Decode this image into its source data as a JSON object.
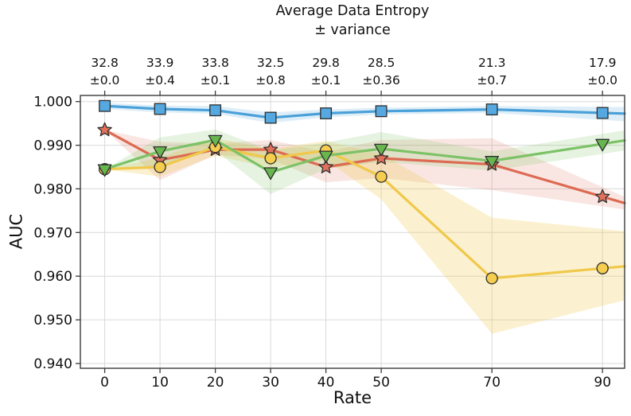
{
  "figure": {
    "title_line1": "Average Data Entropy",
    "title_line2": "± variance",
    "xlabel": "Rate",
    "ylabel": "AUC"
  },
  "chart_data": {
    "type": "line",
    "title": "Average Data Entropy ± variance",
    "xlabel": "Rate",
    "ylabel": "AUC",
    "grid": true,
    "grid_color": "#d9d9d9",
    "spine_color": "#3a3a3a",
    "tick_color": "#3a3a3a",
    "text_color": "#111111",
    "x": [
      0,
      10,
      20,
      30,
      40,
      50,
      70,
      90
    ],
    "xticks": [
      0,
      10,
      20,
      30,
      40,
      50,
      70,
      90
    ],
    "yticks": [
      1.0,
      0.99,
      0.98,
      0.97,
      0.96,
      0.95,
      0.94
    ],
    "xlim": [
      -4.4,
      94.0
    ],
    "ylim": [
      0.9389,
      1.0014
    ],
    "top_axis": {
      "entropies": [
        "32.8",
        "33.9",
        "33.8",
        "32.5",
        "29.8",
        "28.5",
        "21.3",
        "17.9"
      ],
      "variances": [
        "±0.0",
        "±0.4",
        "±0.1",
        "±0.8",
        "±0.1",
        "±0.36",
        "±0.7",
        "±0.0"
      ]
    },
    "series": [
      {
        "name": "red-stars",
        "marker": "star",
        "color": "#dd6a52",
        "marker_fill": "#e1705a",
        "band_alpha": 0.17,
        "values": [
          0.9935,
          0.9866,
          0.989,
          0.989,
          0.985,
          0.987,
          0.9856,
          0.9782
        ],
        "band_lower": [
          0.9935,
          0.982,
          0.9878,
          0.9868,
          0.9815,
          0.9825,
          0.9797,
          0.976
        ],
        "band_upper": [
          0.9935,
          0.9908,
          0.9904,
          0.9912,
          0.9885,
          0.9912,
          0.9916,
          0.9804
        ]
      },
      {
        "name": "yellow-circles",
        "marker": "circle",
        "color": "#f0c84a",
        "marker_fill": "#f5cd4f",
        "band_alpha": 0.26,
        "values": [
          0.9845,
          0.985,
          0.9896,
          0.987,
          0.9888,
          0.9828,
          0.9595,
          0.9618
        ],
        "band_lower": [
          0.9845,
          0.9828,
          0.9876,
          0.9848,
          0.9866,
          0.9776,
          0.9468,
          0.9532
        ],
        "band_upper": [
          0.9845,
          0.9872,
          0.9916,
          0.9892,
          0.991,
          0.988,
          0.9734,
          0.9708
        ]
      },
      {
        "name": "green-triangles",
        "marker": "triangle-down",
        "color": "#7cc266",
        "marker_fill": "#68b64e",
        "band_alpha": 0.2,
        "values": [
          0.9845,
          0.9886,
          0.9912,
          0.9838,
          0.9876,
          0.9892,
          0.9864,
          0.9903
        ],
        "band_lower": [
          0.9845,
          0.9852,
          0.9888,
          0.9788,
          0.9846,
          0.9862,
          0.9842,
          0.988
        ],
        "band_upper": [
          0.9845,
          0.9918,
          0.9936,
          0.9888,
          0.9906,
          0.993,
          0.9886,
          0.9926
        ]
      },
      {
        "name": "blue-squares",
        "marker": "square",
        "color": "#4aa1d9",
        "marker_fill": "#55a8e0",
        "band_alpha": 0.18,
        "values": [
          0.999,
          0.9983,
          0.998,
          0.9963,
          0.9973,
          0.9978,
          0.9982,
          0.9974
        ],
        "band_lower": [
          0.9983,
          0.9975,
          0.9972,
          0.9951,
          0.9964,
          0.997,
          0.9974,
          0.9958
        ],
        "band_upper": [
          0.9997,
          0.9991,
          0.999,
          0.9975,
          0.9982,
          0.9986,
          0.999,
          0.9988
        ]
      }
    ]
  }
}
